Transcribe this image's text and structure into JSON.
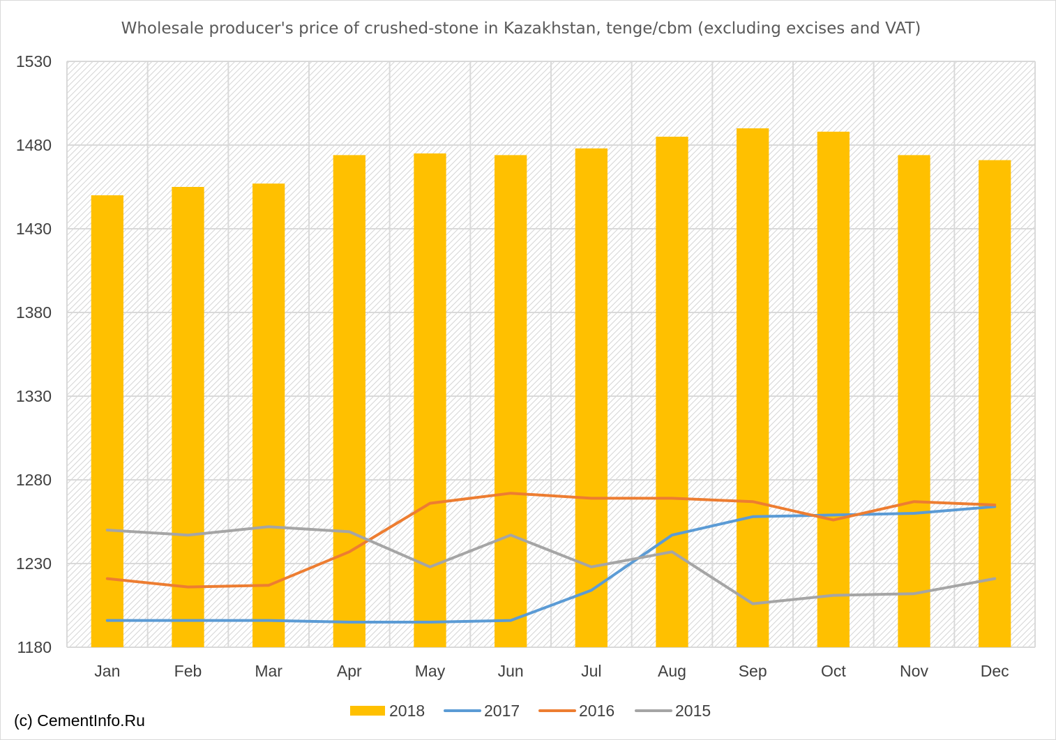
{
  "chart_data": {
    "type": "bar",
    "title": "Wholesale producer's price of crushed-stone in Kazakhstan, tenge/cbm (excluding excises and VAT)",
    "categories": [
      "Jan",
      "Feb",
      "Mar",
      "Apr",
      "May",
      "Jun",
      "Jul",
      "Aug",
      "Sep",
      "Oct",
      "Nov",
      "Dec"
    ],
    "ylim": [
      1180,
      1530
    ],
    "yticks": [
      1180,
      1230,
      1280,
      1330,
      1380,
      1430,
      1480,
      1530
    ],
    "grid": true,
    "legend_position": "bottom",
    "series": [
      {
        "name": "2018",
        "kind": "bar",
        "color": "#FFC000",
        "values": [
          1450,
          1455,
          1457,
          1474,
          1475,
          1474,
          1478,
          1485,
          1490,
          1488,
          1474,
          1471
        ]
      },
      {
        "name": "2017",
        "kind": "line",
        "color": "#5B9BD5",
        "values": [
          1196,
          1196,
          1196,
          1195,
          1195,
          1196,
          1214,
          1247,
          1258,
          1259,
          1260,
          1264
        ]
      },
      {
        "name": "2016",
        "kind": "line",
        "color": "#ED7D31",
        "values": [
          1221,
          1216,
          1217,
          1237,
          1266,
          1272,
          1269,
          1269,
          1267,
          1256,
          1267,
          1265
        ]
      },
      {
        "name": "2015",
        "kind": "line",
        "color": "#A5A5A5",
        "values": [
          1250,
          1247,
          1252,
          1249,
          1228,
          1247,
          1228,
          1237,
          1206,
          1211,
          1212,
          1221
        ]
      }
    ]
  },
  "copyright": "(c) CementInfo.Ru"
}
